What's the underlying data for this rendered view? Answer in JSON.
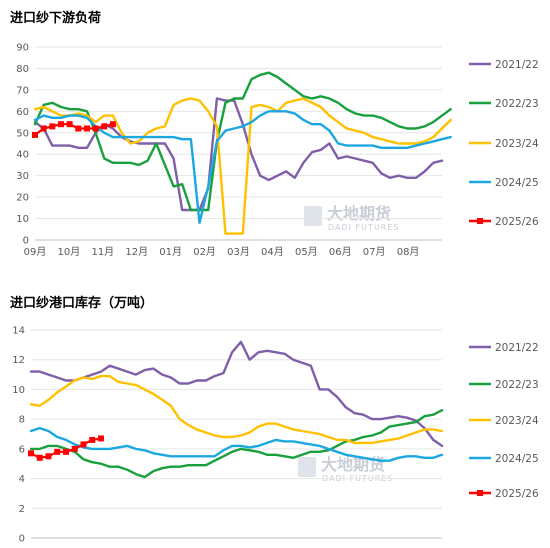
{
  "colors": {
    "2021/22": "#7F5FA8",
    "2022/23": "#19A03C",
    "2023/24": "#FFC000",
    "2024/25": "#1CA7E1",
    "2025/26": "#FF0000"
  },
  "watermark": {
    "cn": "大地期货",
    "en": "DADI FUTURES"
  },
  "chart_data": [
    {
      "type": "line",
      "title": "进口纱下游负荷",
      "xlabel": "",
      "ylabel": "",
      "ylim": [
        0,
        90
      ],
      "yticks": [
        "0",
        "10",
        "20",
        "30",
        "40",
        "50",
        "60",
        "70",
        "80",
        "90"
      ],
      "xticks": [
        "09月",
        "10月",
        "11月",
        "12月",
        "01月",
        "02月",
        "03月",
        "04月",
        "05月",
        "06月",
        "07月",
        "08月"
      ],
      "legend": "right",
      "grid": true,
      "series": [
        {
          "name": "2021/22",
          "values": [
            55,
            52,
            44,
            44,
            44,
            43,
            43,
            50,
            54,
            52,
            48,
            46,
            45,
            45,
            45,
            45,
            38,
            14,
            14,
            14,
            24,
            66,
            65,
            65,
            54,
            40,
            30,
            28,
            30,
            32,
            29,
            36,
            41,
            42,
            45,
            38,
            39,
            38,
            37,
            36,
            31,
            29,
            30,
            29,
            29,
            32,
            36,
            37
          ]
        },
        {
          "name": "2022/23",
          "values": [
            54,
            63,
            64,
            62,
            61,
            61,
            60,
            50,
            38,
            36,
            36,
            36,
            35,
            37,
            45,
            35,
            25,
            26,
            14,
            14,
            14,
            46,
            64,
            66,
            66,
            75,
            77,
            78,
            76,
            73,
            70,
            67,
            66,
            67,
            66,
            64,
            61,
            59,
            58,
            58,
            57,
            55,
            53,
            52,
            52,
            53,
            55,
            58,
            61
          ]
        },
        {
          "name": "2023/24",
          "values": [
            61,
            62,
            60,
            58,
            58,
            59,
            58,
            55,
            58,
            58,
            50,
            45,
            46,
            50,
            52,
            53,
            63,
            65,
            66,
            65,
            60,
            53,
            3,
            3,
            3,
            62,
            63,
            62,
            60,
            64,
            65,
            66,
            64,
            62,
            58,
            55,
            52,
            51,
            50,
            48,
            47,
            46,
            45,
            45,
            45,
            46,
            48,
            52,
            56
          ]
        },
        {
          "name": "2024/25",
          "values": [
            56,
            58,
            57,
            57,
            58,
            58,
            57,
            53,
            50,
            48,
            48,
            48,
            48,
            48,
            48,
            48,
            48,
            47,
            47,
            8,
            25,
            46,
            51,
            52,
            53,
            55,
            58,
            60,
            60,
            60,
            59,
            56,
            54,
            54,
            51,
            45,
            44,
            44,
            44,
            44,
            43,
            43,
            43,
            43,
            44,
            45,
            46,
            47,
            48
          ]
        },
        {
          "name": "2025/26",
          "values": [
            49,
            52,
            53,
            54,
            54,
            52,
            52,
            52,
            53,
            54
          ]
        }
      ]
    },
    {
      "type": "line",
      "title": "进口纱港口库存（万吨）",
      "xlabel": "",
      "ylabel": "",
      "ylim": [
        0,
        14
      ],
      "yticks": [
        "0",
        "2",
        "4",
        "6",
        "8",
        "10",
        "12",
        "14"
      ],
      "xticks": [
        "09月",
        "10月",
        "11月",
        "12月",
        "01月",
        "02月",
        "03月",
        "04月",
        "05月",
        "06月",
        "07月",
        "08月"
      ],
      "legend": "right",
      "grid": true,
      "series": [
        {
          "name": "2021/22",
          "values": [
            11.2,
            11.2,
            11.0,
            10.8,
            10.6,
            10.6,
            10.8,
            11.0,
            11.2,
            11.6,
            11.4,
            11.2,
            11.0,
            11.3,
            11.4,
            11.0,
            10.8,
            10.4,
            10.4,
            10.6,
            10.6,
            10.9,
            11.1,
            12.5,
            13.2,
            12.0,
            12.5,
            12.6,
            12.5,
            12.4,
            12.0,
            11.8,
            11.6,
            10.0,
            10.0,
            9.5,
            8.8,
            8.4,
            8.3,
            8.0,
            8.0,
            8.1,
            8.2,
            8.1,
            7.9,
            7.4,
            6.6,
            6.2
          ]
        },
        {
          "name": "2022/23",
          "values": [
            6.0,
            6.0,
            6.2,
            6.2,
            6.0,
            5.8,
            5.3,
            5.1,
            5.0,
            4.8,
            4.8,
            4.6,
            4.3,
            4.1,
            4.5,
            4.7,
            4.8,
            4.8,
            4.9,
            4.9,
            4.9,
            5.2,
            5.5,
            5.8,
            6.0,
            5.9,
            5.8,
            5.6,
            5.6,
            5.5,
            5.4,
            5.6,
            5.8,
            5.8,
            5.9,
            6.2,
            6.5,
            6.6,
            6.8,
            6.9,
            7.1,
            7.5,
            7.6,
            7.7,
            7.8,
            8.2,
            8.3,
            8.6
          ]
        },
        {
          "name": "2023/24",
          "values": [
            9.0,
            8.9,
            9.3,
            9.8,
            10.2,
            10.6,
            10.8,
            10.7,
            10.9,
            10.9,
            10.5,
            10.4,
            10.3,
            10.0,
            9.7,
            9.3,
            8.9,
            8.0,
            7.6,
            7.3,
            7.1,
            6.9,
            6.8,
            6.8,
            6.9,
            7.1,
            7.5,
            7.7,
            7.7,
            7.5,
            7.3,
            7.2,
            7.1,
            7.0,
            6.8,
            6.6,
            6.6,
            6.4,
            6.4,
            6.4,
            6.5,
            6.6,
            6.7,
            6.9,
            7.1,
            7.3,
            7.3,
            7.2
          ]
        },
        {
          "name": "2024/25",
          "values": [
            7.2,
            7.4,
            7.2,
            6.8,
            6.6,
            6.3,
            6.1,
            6.0,
            6.0,
            6.0,
            6.1,
            6.2,
            6.0,
            5.9,
            5.7,
            5.6,
            5.5,
            5.5,
            5.5,
            5.5,
            5.5,
            5.5,
            5.9,
            6.2,
            6.2,
            6.1,
            6.2,
            6.4,
            6.6,
            6.5,
            6.5,
            6.4,
            6.3,
            6.2,
            6.0,
            5.8,
            5.6,
            5.5,
            5.4,
            5.3,
            5.2,
            5.2,
            5.4,
            5.5,
            5.5,
            5.4,
            5.4,
            5.6
          ]
        },
        {
          "name": "2025/26",
          "values": [
            5.7,
            5.4,
            5.5,
            5.8,
            5.8,
            6.0,
            6.3,
            6.6,
            6.7
          ]
        }
      ]
    }
  ]
}
